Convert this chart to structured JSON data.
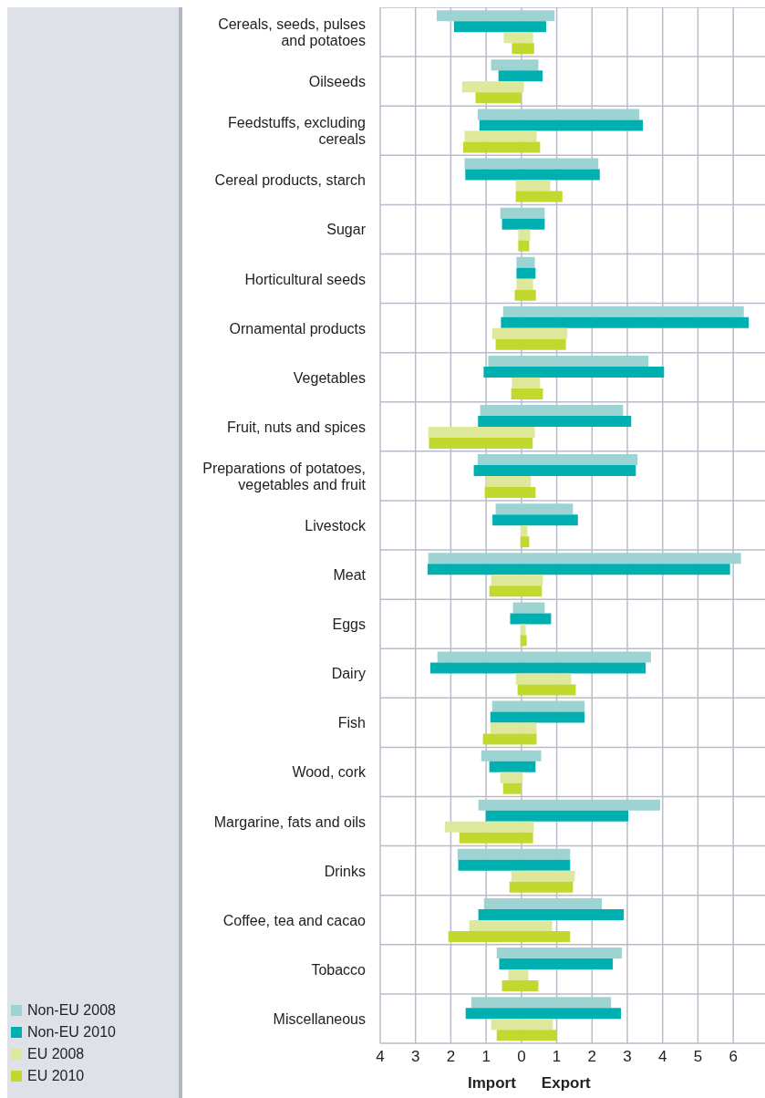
{
  "chart_data": {
    "type": "bar",
    "orientation": "horizontal",
    "categories": [
      "Cereals, seeds, pulses and potatoes",
      "Oilseeds",
      "Feedstuffs, excluding cereals",
      "Cereal products, starch",
      "Sugar",
      "Horticultural seeds",
      "Ornamental products",
      "Vegetables",
      "Fruit, nuts and spices",
      "Preparations of potatoes, vegetables and fruit",
      "Livestock",
      "Meat",
      "Eggs",
      "Dairy",
      "Fish",
      "Wood, cork",
      "Margarine, fats and oils",
      "Drinks",
      "Coffee, tea and cacao",
      "Tobacco",
      "Miscellaneous"
    ],
    "series": [
      {
        "name": "Non-EU 2008",
        "color": "#9dd3d2",
        "base": [
          -2.4,
          -0.86,
          -1.24,
          -1.61,
          -0.6,
          -0.14,
          -0.52,
          -0.94,
          -1.17,
          -1.24,
          -0.73,
          -2.64,
          -0.24,
          -2.38,
          -0.83,
          -1.14,
          -1.22,
          -1.81,
          -1.06,
          -0.7,
          -1.42
        ],
        "values": [
          3.34,
          1.34,
          4.58,
          3.79,
          1.26,
          0.52,
          6.82,
          4.54,
          4.05,
          4.53,
          2.19,
          8.86,
          0.9,
          6.05,
          2.62,
          1.7,
          5.15,
          3.19,
          3.34,
          3.55,
          3.96
        ]
      },
      {
        "name": "Non-EU 2010",
        "color": "#00b0b0",
        "base": [
          -1.91,
          -0.65,
          -1.19,
          -1.59,
          -0.55,
          -0.14,
          -0.58,
          -1.07,
          -1.23,
          -1.35,
          -0.82,
          -2.66,
          -0.32,
          -2.58,
          -0.88,
          -0.91,
          -1.01,
          -1.79,
          -1.22,
          -0.63,
          -1.58
        ],
        "values": [
          2.61,
          1.25,
          4.63,
          3.81,
          1.21,
          0.54,
          7.02,
          5.11,
          4.34,
          4.59,
          2.42,
          8.57,
          1.16,
          6.1,
          2.67,
          1.31,
          4.04,
          3.17,
          4.12,
          3.22,
          4.4
        ]
      },
      {
        "name": "EU 2008",
        "color": "#dde89a",
        "base": [
          -0.5,
          -1.68,
          -1.61,
          -0.16,
          -0.09,
          -0.14,
          -0.83,
          -0.27,
          -2.64,
          -1.0,
          -0.03,
          -0.86,
          -0.03,
          -0.16,
          -0.88,
          -0.6,
          -2.17,
          -0.29,
          -1.48,
          -0.37,
          -0.86
        ],
        "values": [
          0.83,
          1.75,
          2.04,
          0.98,
          0.34,
          0.47,
          2.13,
          0.8,
          3.02,
          1.27,
          0.2,
          1.47,
          0.15,
          1.57,
          1.31,
          0.64,
          2.52,
          1.8,
          2.35,
          0.57,
          1.75
        ]
      },
      {
        "name": "EU 2010",
        "color": "#c2d82e",
        "base": [
          -0.27,
          -1.3,
          -1.65,
          -0.16,
          -0.09,
          -0.19,
          -0.73,
          -0.29,
          -2.62,
          -1.04,
          -0.03,
          -0.91,
          -0.03,
          -0.11,
          -1.09,
          -0.52,
          -1.76,
          -0.34,
          -2.07,
          -0.55,
          -0.7
        ],
        "values": [
          0.63,
          1.3,
          2.18,
          1.32,
          0.31,
          0.6,
          1.99,
          0.9,
          2.94,
          1.44,
          0.25,
          1.49,
          0.18,
          1.65,
          1.52,
          0.52,
          2.09,
          1.8,
          3.45,
          1.03,
          1.7
        ]
      }
    ],
    "xlim": [
      -4,
      6.9
    ],
    "xticks": [
      {
        "value": -4,
        "label": "4"
      },
      {
        "value": -3,
        "label": "3"
      },
      {
        "value": -2,
        "label": "2"
      },
      {
        "value": -1,
        "label": "1"
      },
      0,
      1,
      2,
      3,
      4,
      5,
      6
    ],
    "grid": true,
    "legend": "bottom left",
    "annotations": [
      "Import",
      "Export"
    ]
  }
}
